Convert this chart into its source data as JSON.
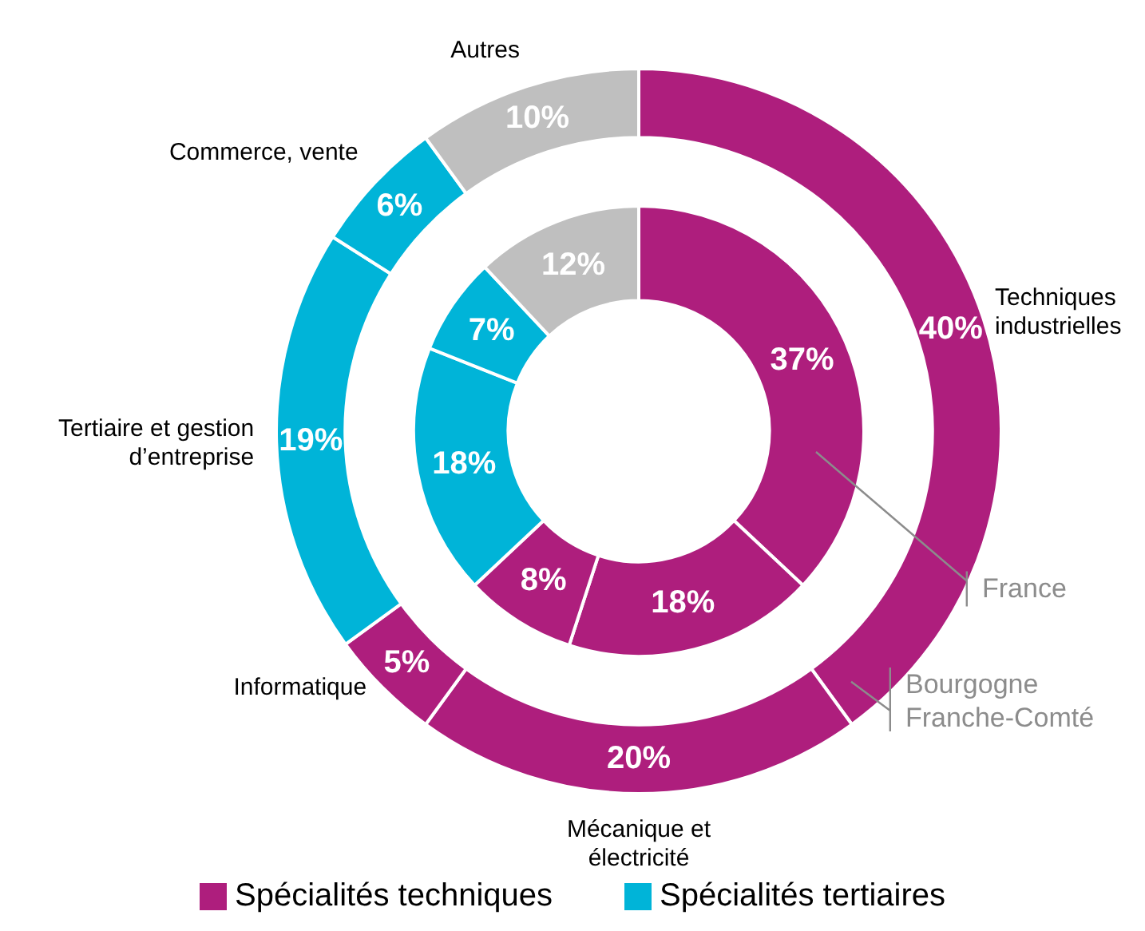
{
  "chart_data": {
    "type": "donut",
    "categories": [
      "Techniques industrielles",
      "Mécanique et électricité",
      "Informatique",
      "Tertiaire et gestion d’entreprise",
      "Commerce, vente",
      "Autres"
    ],
    "colors": [
      "#ae1e7d",
      "#ae1e7d",
      "#ae1e7d",
      "#00b4d8",
      "#00b4d8",
      "#bfbfbf"
    ],
    "series": [
      {
        "name": "Bourgogne Franche-Comté",
        "values": [
          40,
          20,
          5,
          19,
          6,
          10
        ],
        "value_labels": [
          "40%",
          "20%",
          "5%",
          "19%",
          "6%",
          "10%"
        ]
      },
      {
        "name": "France",
        "values": [
          37,
          18,
          8,
          18,
          7,
          12
        ],
        "value_labels": [
          "37%",
          "18%",
          "8%",
          "18%",
          "7%",
          "12%"
        ]
      }
    ],
    "annotations": [
      "Spécialités techniques",
      "Spécialités tertiaires"
    ],
    "legend": "bottom"
  }
}
